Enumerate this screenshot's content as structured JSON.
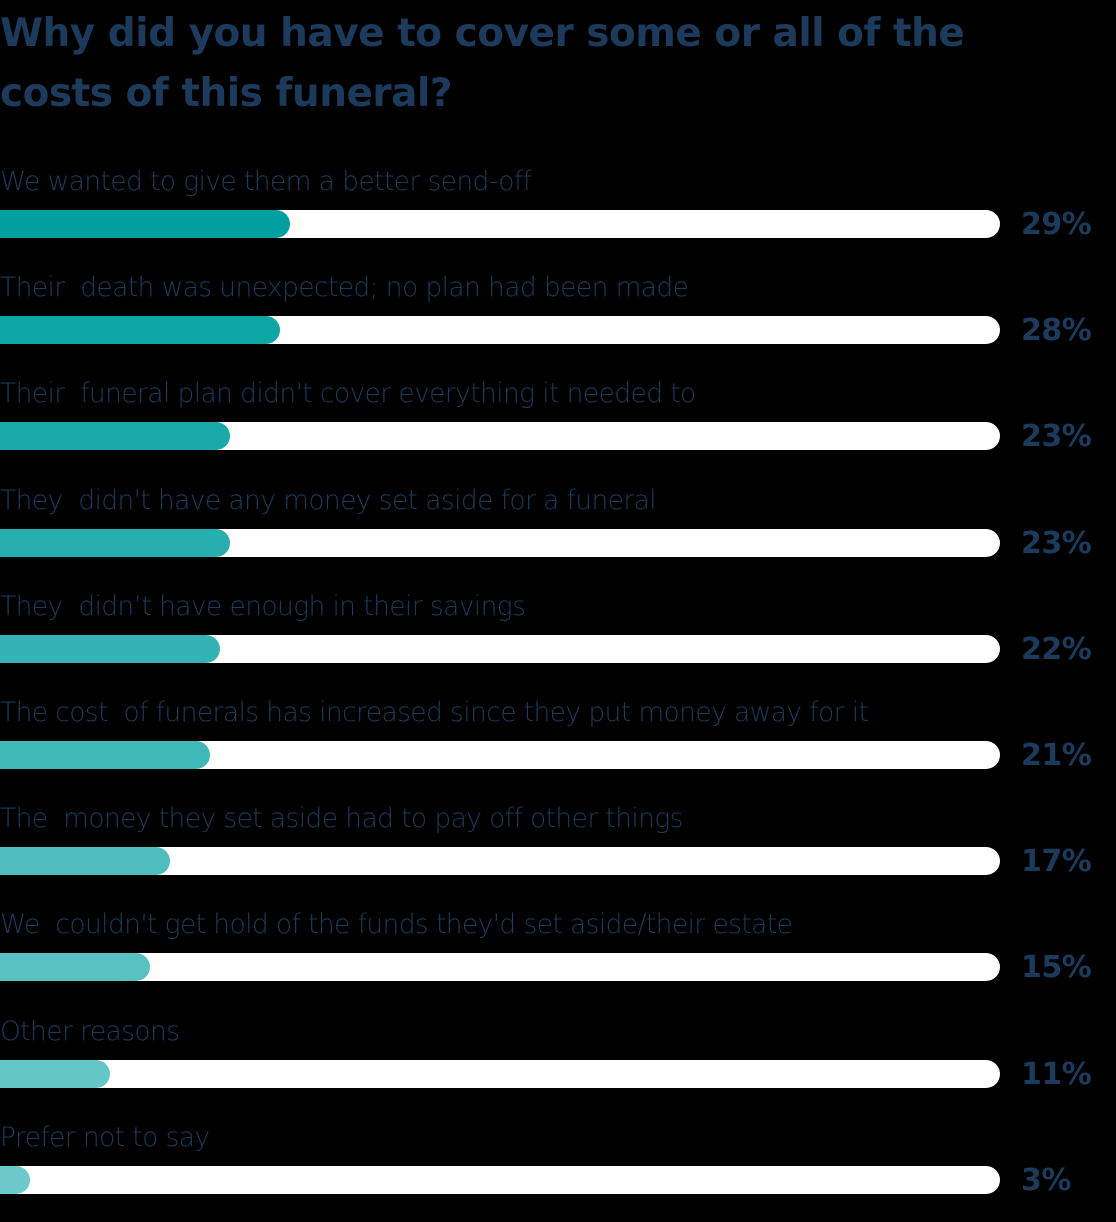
{
  "title": "Why did you have to cover some or all of the costs of this funeral?",
  "colors": {
    "text": "#1b3a5c",
    "track": "#ffffff"
  },
  "rows": [
    {
      "label": "We wanted to give them a better send-off",
      "value": 29,
      "pct": "29%",
      "color": "#00a0a0"
    },
    {
      "label": "Their  death was unexpected; no plan had been made",
      "value": 28,
      "pct": "28%",
      "color": "#0ea5a5"
    },
    {
      "label": "Their  funeral plan didn't cover everything it needed to",
      "value": 23,
      "pct": "23%",
      "color": "#1aa9a9"
    },
    {
      "label": "They  didn't have any money set aside for a funeral",
      "value": 23,
      "pct": "23%",
      "color": "#27aeae"
    },
    {
      "label": "They  didn’t have enough in their savings",
      "value": 22,
      "pct": "22%",
      "color": "#33b3b3"
    },
    {
      "label": "The cost  of funerals has increased since they put money away for it",
      "value": 21,
      "pct": "21%",
      "color": "#41b8b8"
    },
    {
      "label": "The  money they set aside had to pay off other things",
      "value": 17,
      "pct": "17%",
      "color": "#4dbdbd"
    },
    {
      "label": "We  couldn't get hold of the funds they'd set aside/their estate",
      "value": 15,
      "pct": "15%",
      "color": "#58c1c1"
    },
    {
      "label": "Other reasons",
      "value": 11,
      "pct": "11%",
      "color": "#64c6c6"
    },
    {
      "label": "Prefer not to say",
      "value": 3,
      "pct": "3%",
      "color": "#6ecaca"
    }
  ],
  "chart_data": {
    "type": "bar",
    "orientation": "horizontal",
    "title": "Why did you have to cover some or all of the costs of this funeral?",
    "categories": [
      "We wanted to give them a better send-off",
      "Their death was unexpected; no plan had been made",
      "Their funeral plan didn't cover everything it needed to",
      "They didn't have any money set aside for a funeral",
      "They didn’t have enough in their savings",
      "The cost of funerals has increased since they put money away for it",
      "The money they set aside had to pay off other things",
      "We couldn't get hold of the funds they'd set aside/their estate",
      "Other reasons",
      "Prefer not to say"
    ],
    "values": [
      29,
      28,
      23,
      23,
      22,
      21,
      17,
      15,
      11,
      3
    ],
    "unit": "%",
    "xlim": [
      0,
      100
    ],
    "xlabel": "",
    "ylabel": "",
    "grid": false,
    "legend": null
  }
}
